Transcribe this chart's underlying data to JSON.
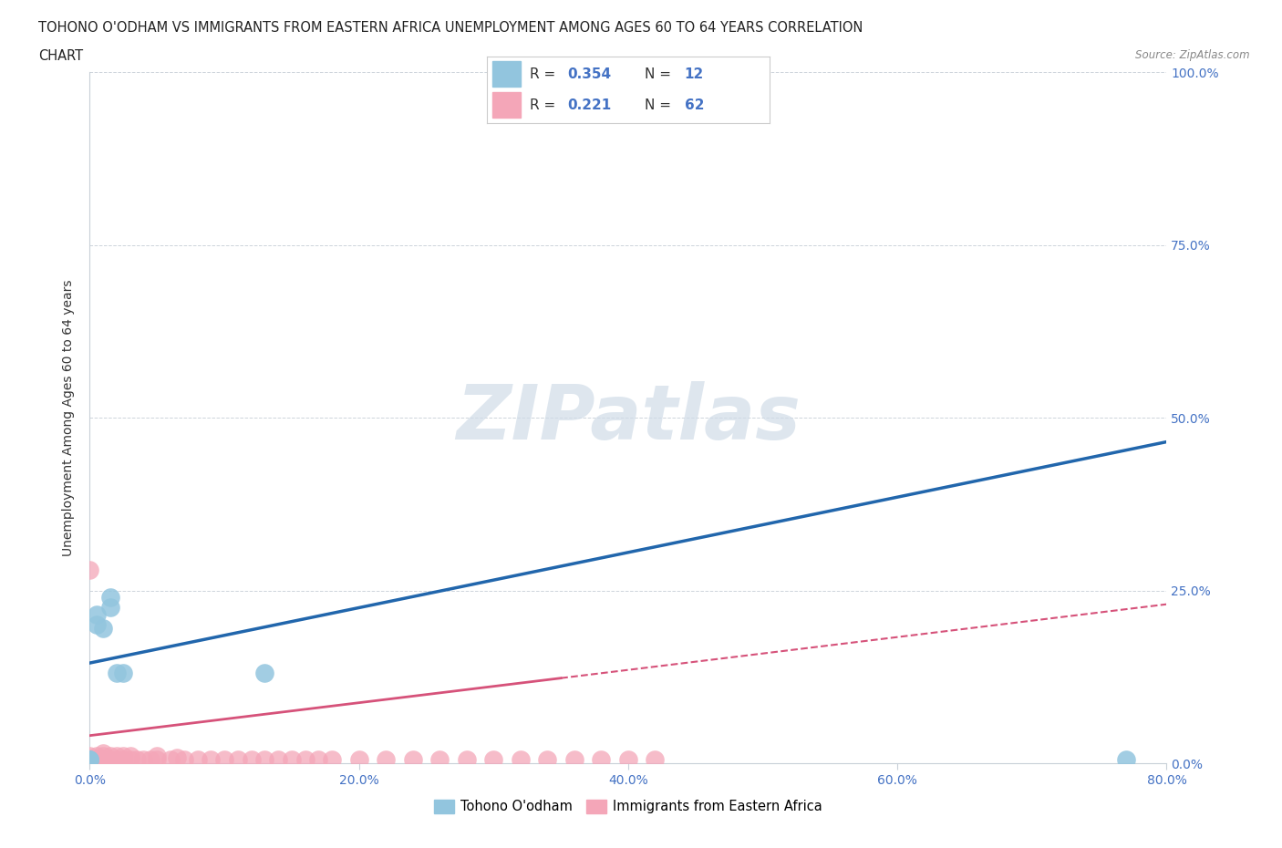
{
  "title_line1": "TOHONO O'ODHAM VS IMMIGRANTS FROM EASTERN AFRICA UNEMPLOYMENT AMONG AGES 60 TO 64 YEARS CORRELATION",
  "title_line2": "CHART",
  "source_text": "Source: ZipAtlas.com",
  "ylabel": "Unemployment Among Ages 60 to 64 years",
  "xlim": [
    0.0,
    0.8
  ],
  "ylim": [
    0.0,
    1.0
  ],
  "xticks": [
    0.0,
    0.2,
    0.4,
    0.6,
    0.8
  ],
  "xtick_labels": [
    "0.0%",
    "20.0%",
    "40.0%",
    "60.0%",
    "80.0%"
  ],
  "yticks": [
    0.0,
    0.25,
    0.5,
    0.75,
    1.0
  ],
  "ytick_labels": [
    "0.0%",
    "25.0%",
    "50.0%",
    "75.0%",
    "100.0%"
  ],
  "blue_color": "#92C5DE",
  "pink_color": "#F4A6B8",
  "blue_line_color": "#2166AC",
  "pink_line_color": "#D6527A",
  "watermark": "ZIPatlas",
  "legend_label_blue": "Tohono O'odham",
  "legend_label_pink": "Immigrants from Eastern Africa",
  "blue_scatter_x": [
    0.0,
    0.0,
    0.0,
    0.005,
    0.005,
    0.01,
    0.015,
    0.015,
    0.02,
    0.025,
    0.13,
    0.77
  ],
  "blue_scatter_y": [
    0.005,
    0.005,
    0.005,
    0.2,
    0.215,
    0.195,
    0.225,
    0.24,
    0.13,
    0.13,
    0.13,
    0.005
  ],
  "pink_scatter_x": [
    0.0,
    0.0,
    0.0,
    0.0,
    0.0,
    0.0,
    0.0,
    0.0,
    0.0,
    0.0,
    0.005,
    0.005,
    0.005,
    0.005,
    0.005,
    0.01,
    0.01,
    0.01,
    0.01,
    0.01,
    0.015,
    0.015,
    0.015,
    0.02,
    0.02,
    0.02,
    0.02,
    0.025,
    0.025,
    0.03,
    0.03,
    0.035,
    0.04,
    0.045,
    0.05,
    0.05,
    0.06,
    0.065,
    0.07,
    0.08,
    0.09,
    0.1,
    0.11,
    0.12,
    0.13,
    0.14,
    0.15,
    0.16,
    0.17,
    0.18,
    0.2,
    0.22,
    0.24,
    0.26,
    0.28,
    0.3,
    0.32,
    0.34,
    0.36,
    0.38,
    0.4,
    0.42
  ],
  "pink_scatter_y": [
    0.0,
    0.0,
    0.0,
    0.0,
    0.0,
    0.0,
    0.005,
    0.005,
    0.01,
    0.28,
    0.0,
    0.0,
    0.005,
    0.005,
    0.01,
    0.0,
    0.0,
    0.005,
    0.01,
    0.015,
    0.0,
    0.005,
    0.01,
    0.0,
    0.0,
    0.005,
    0.01,
    0.005,
    0.01,
    0.005,
    0.01,
    0.005,
    0.005,
    0.005,
    0.005,
    0.01,
    0.005,
    0.008,
    0.005,
    0.005,
    0.005,
    0.005,
    0.005,
    0.005,
    0.005,
    0.005,
    0.005,
    0.005,
    0.005,
    0.005,
    0.005,
    0.005,
    0.005,
    0.005,
    0.005,
    0.005,
    0.005,
    0.005,
    0.005,
    0.005,
    0.005,
    0.005
  ],
  "blue_trend_x_start": 0.0,
  "blue_trend_x_end": 0.8,
  "blue_trend_y_start": 0.145,
  "blue_trend_y_end": 0.465,
  "pink_trend_x_start": 0.0,
  "pink_trend_x_end": 0.8,
  "pink_trend_y_start": 0.04,
  "pink_trend_y_end": 0.23
}
